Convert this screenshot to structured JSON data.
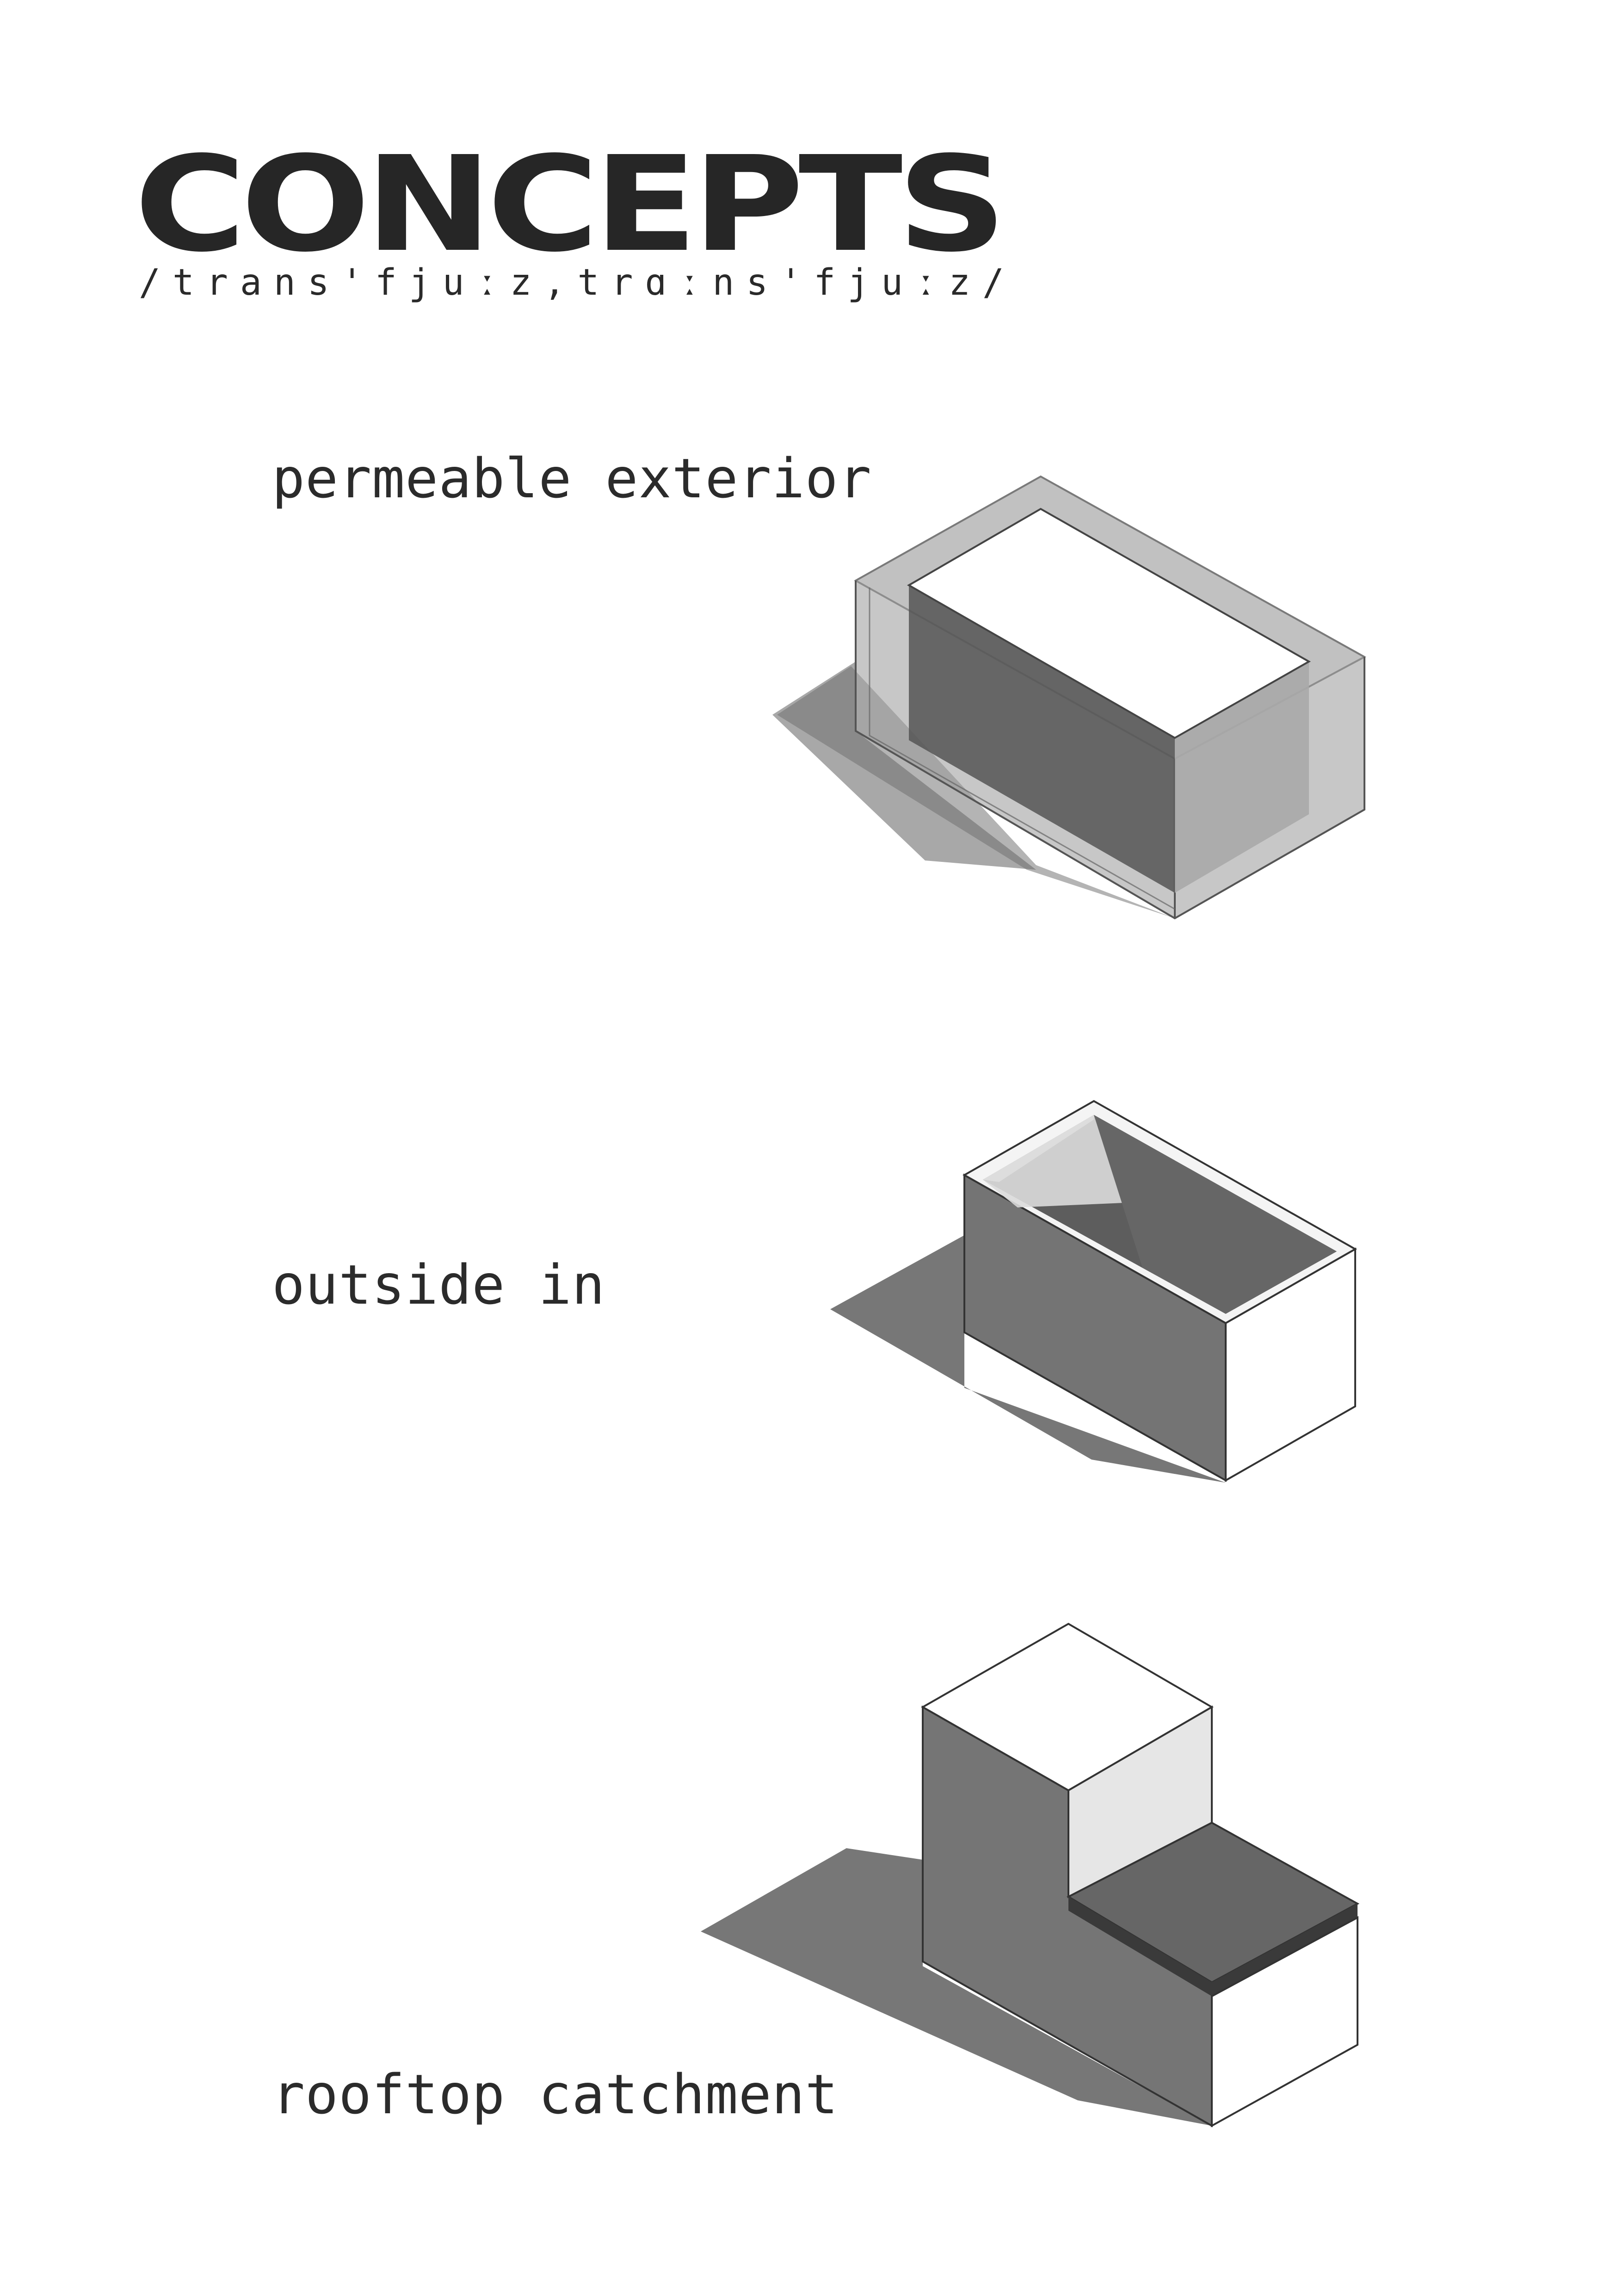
{
  "header": {
    "title": "CONCEPTS",
    "phonetic": "/trans'fjuːz,trɑːns'fjuːz/"
  },
  "concepts": [
    {
      "label": "permeable exterior",
      "icon": "translucent-shell-box-diagram"
    },
    {
      "label": "outside in",
      "icon": "open-top-box-diagram"
    },
    {
      "label": "rooftop catchment",
      "icon": "stepped-roof-box-diagram"
    }
  ],
  "colors": {
    "text": "#2a2a2a",
    "dark_face": "#6b6b6b",
    "light_face": "#ffffff",
    "shadow": "#7a7a7a",
    "edge": "#3a3a3a"
  }
}
